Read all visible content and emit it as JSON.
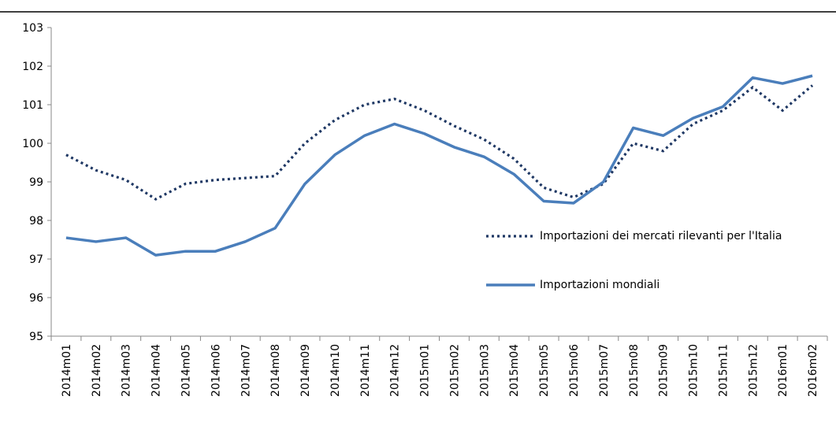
{
  "chart_data": {
    "type": "line",
    "categories": [
      "2014m01",
      "2014m02",
      "2014m03",
      "2014m04",
      "2014m05",
      "2014m06",
      "2014m07",
      "2014m08",
      "2014m09",
      "2014m10",
      "2014m11",
      "2014m12",
      "2015m01",
      "2015m02",
      "2015m03",
      "2015m04",
      "2015m05",
      "2015m06",
      "2015m07",
      "2015m08",
      "2015m09",
      "2015m10",
      "2015m11",
      "2015m12",
      "2016m01",
      "2016m02"
    ],
    "series": [
      {
        "name": "Importazioni dei mercati rilevanti per l'Italia",
        "color": "#1f3864",
        "dash": "dotted",
        "values": [
          99.7,
          99.3,
          99.05,
          98.55,
          98.95,
          99.05,
          99.1,
          99.15,
          100.0,
          100.6,
          101.0,
          101.15,
          100.85,
          100.45,
          100.1,
          99.6,
          98.85,
          98.6,
          98.95,
          100.0,
          99.8,
          100.5,
          100.85,
          101.45,
          100.85,
          101.5
        ]
      },
      {
        "name": "Importazioni mondiali",
        "color": "#4a7ebb",
        "dash": "solid",
        "values": [
          97.55,
          97.45,
          97.55,
          97.1,
          97.2,
          97.2,
          97.45,
          97.8,
          98.95,
          99.7,
          100.2,
          100.5,
          100.25,
          99.9,
          99.65,
          99.2,
          98.5,
          98.45,
          99.0,
          100.4,
          100.2,
          100.65,
          100.95,
          101.7,
          101.55,
          101.75
        ]
      }
    ],
    "ylim": [
      95,
      103
    ],
    "yticks": [
      95,
      96,
      97,
      98,
      99,
      100,
      101,
      102,
      103
    ],
    "grid": false
  }
}
